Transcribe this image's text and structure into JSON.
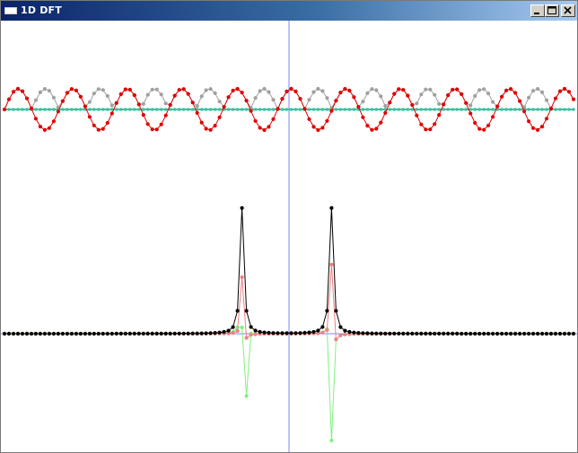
{
  "window": {
    "title": "1D DFT",
    "buttons": [
      "minimize",
      "maximize",
      "close"
    ]
  },
  "colors": {
    "signal_real": "#e00000",
    "signal_imag": "#a0a0a0",
    "signal_flat": "#40c0a0",
    "magnitude": "#000000",
    "dft_real": "#f08080",
    "dft_imag": "#80f080",
    "axis": "#8080ff"
  }
}
